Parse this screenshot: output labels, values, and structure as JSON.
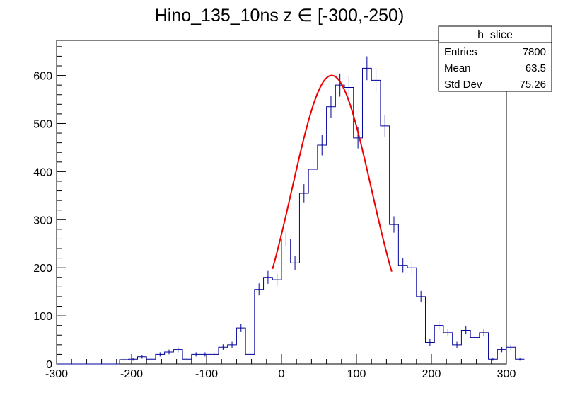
{
  "chart_data": {
    "type": "histogram",
    "title": "Hino_135_10ns z  ∈ [-300,-250)",
    "xlim": [
      -300,
      300
    ],
    "ylim": [
      0,
      673
    ],
    "x_ticks": [
      -300,
      -200,
      -100,
      0,
      100,
      200,
      300
    ],
    "y_ticks": [
      0,
      100,
      200,
      300,
      400,
      500,
      600
    ],
    "bin_width": 12,
    "bin_edges_start": -300,
    "values": [
      0,
      0,
      0,
      0,
      0,
      0,
      0,
      9,
      10,
      15,
      10,
      20,
      25,
      30,
      10,
      20,
      20,
      20,
      35,
      40,
      75,
      20,
      155,
      180,
      175,
      260,
      210,
      355,
      405,
      455,
      535,
      580,
      575,
      470,
      615,
      590,
      495,
      290,
      205,
      200,
      140,
      45,
      80,
      65,
      40,
      70,
      55,
      65,
      10,
      30,
      35,
      10
    ],
    "fit_color": "#ee0000",
    "hist_color": "#000099",
    "fit": {
      "type": "gaussian",
      "constant": 600,
      "mean": 67,
      "sigma": 53,
      "range": [
        -12,
        147
      ]
    },
    "stats_box": {
      "title": "h_slice",
      "rows": [
        {
          "label": "Entries",
          "value": "7800"
        },
        {
          "label": "Mean",
          "value": "63.5"
        },
        {
          "label": "Std Dev",
          "value": "75.26"
        }
      ]
    }
  }
}
